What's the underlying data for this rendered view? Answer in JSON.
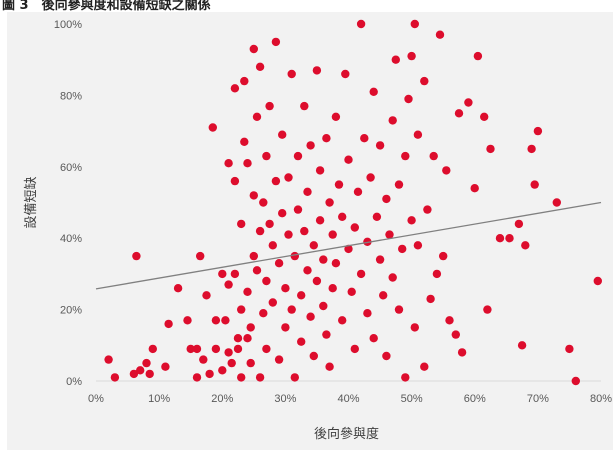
{
  "caption": "圖 3　後向參與度和設備短缺之關係",
  "chart_data": {
    "type": "scatter",
    "xlabel": "後向參與度",
    "ylabel": "設備短缺",
    "xlim": [
      0,
      0.8
    ],
    "ylim": [
      0,
      1
    ],
    "xticks": [
      0,
      0.1,
      0.2,
      0.3,
      0.4,
      0.5,
      0.6,
      0.7,
      0.8
    ],
    "yticks": [
      0,
      0.2,
      0.4,
      0.6,
      0.8,
      1.0
    ],
    "xtick_labels": [
      "0%",
      "10%",
      "20%",
      "30%",
      "40%",
      "50%",
      "60%",
      "70%",
      "80%"
    ],
    "ytick_labels": [
      "0%",
      "20%",
      "40%",
      "60%",
      "80%",
      "100%"
    ],
    "grid": false,
    "legend": "none",
    "marker_color": "#dd0d2d",
    "trendline": {
      "type": "linear",
      "color": "#808080",
      "x": [
        0,
        0.8
      ],
      "y": [
        0.258,
        0.5
      ]
    },
    "points": [
      [
        0.02,
        0.06
      ],
      [
        0.03,
        0.01
      ],
      [
        0.06,
        0.02
      ],
      [
        0.064,
        0.35
      ],
      [
        0.07,
        0.03
      ],
      [
        0.08,
        0.05
      ],
      [
        0.085,
        0.02
      ],
      [
        0.09,
        0.09
      ],
      [
        0.11,
        0.04
      ],
      [
        0.115,
        0.16
      ],
      [
        0.13,
        0.26
      ],
      [
        0.145,
        0.17
      ],
      [
        0.15,
        0.09
      ],
      [
        0.16,
        0.01
      ],
      [
        0.16,
        0.09
      ],
      [
        0.165,
        0.35
      ],
      [
        0.17,
        0.06
      ],
      [
        0.175,
        0.24
      ],
      [
        0.18,
        0.02
      ],
      [
        0.185,
        0.71
      ],
      [
        0.19,
        0.17
      ],
      [
        0.19,
        0.09
      ],
      [
        0.2,
        0.3
      ],
      [
        0.2,
        0.03
      ],
      [
        0.205,
        0.17
      ],
      [
        0.21,
        0.27
      ],
      [
        0.21,
        0.61
      ],
      [
        0.21,
        0.08
      ],
      [
        0.215,
        0.05
      ],
      [
        0.22,
        0.56
      ],
      [
        0.22,
        0.82
      ],
      [
        0.22,
        0.3
      ],
      [
        0.225,
        0.09
      ],
      [
        0.225,
        0.12
      ],
      [
        0.23,
        0.01
      ],
      [
        0.23,
        0.2
      ],
      [
        0.23,
        0.44
      ],
      [
        0.235,
        0.67
      ],
      [
        0.235,
        0.84
      ],
      [
        0.24,
        0.61
      ],
      [
        0.24,
        0.12
      ],
      [
        0.24,
        0.25
      ],
      [
        0.245,
        0.05
      ],
      [
        0.245,
        0.15
      ],
      [
        0.25,
        0.35
      ],
      [
        0.25,
        0.52
      ],
      [
        0.25,
        0.93
      ],
      [
        0.255,
        0.31
      ],
      [
        0.255,
        0.74
      ],
      [
        0.26,
        0.42
      ],
      [
        0.26,
        0.88
      ],
      [
        0.26,
        0.01
      ],
      [
        0.265,
        0.5
      ],
      [
        0.265,
        0.19
      ],
      [
        0.27,
        0.63
      ],
      [
        0.27,
        0.28
      ],
      [
        0.27,
        0.09
      ],
      [
        0.275,
        0.44
      ],
      [
        0.275,
        0.77
      ],
      [
        0.28,
        0.22
      ],
      [
        0.28,
        0.38
      ],
      [
        0.285,
        0.56
      ],
      [
        0.285,
        0.95
      ],
      [
        0.29,
        0.06
      ],
      [
        0.29,
        0.33
      ],
      [
        0.295,
        0.47
      ],
      [
        0.295,
        0.69
      ],
      [
        0.3,
        0.15
      ],
      [
        0.3,
        0.26
      ],
      [
        0.305,
        0.41
      ],
      [
        0.305,
        0.57
      ],
      [
        0.31,
        0.86
      ],
      [
        0.31,
        0.2
      ],
      [
        0.315,
        0.01
      ],
      [
        0.315,
        0.35
      ],
      [
        0.32,
        0.48
      ],
      [
        0.32,
        0.63
      ],
      [
        0.325,
        0.24
      ],
      [
        0.325,
        0.11
      ],
      [
        0.33,
        0.77
      ],
      [
        0.33,
        0.42
      ],
      [
        0.335,
        0.31
      ],
      [
        0.335,
        0.53
      ],
      [
        0.34,
        0.18
      ],
      [
        0.34,
        0.66
      ],
      [
        0.345,
        0.38
      ],
      [
        0.345,
        0.07
      ],
      [
        0.35,
        0.87
      ],
      [
        0.35,
        0.28
      ],
      [
        0.355,
        0.45
      ],
      [
        0.355,
        0.59
      ],
      [
        0.36,
        0.21
      ],
      [
        0.36,
        0.34
      ],
      [
        0.365,
        0.68
      ],
      [
        0.365,
        0.13
      ],
      [
        0.37,
        0.5
      ],
      [
        0.37,
        0.04
      ],
      [
        0.375,
        0.41
      ],
      [
        0.375,
        0.26
      ],
      [
        0.38,
        0.74
      ],
      [
        0.38,
        0.33
      ],
      [
        0.385,
        0.55
      ],
      [
        0.39,
        0.17
      ],
      [
        0.39,
        0.46
      ],
      [
        0.395,
        0.86
      ],
      [
        0.4,
        0.37
      ],
      [
        0.4,
        0.62
      ],
      [
        0.405,
        0.25
      ],
      [
        0.41,
        0.09
      ],
      [
        0.41,
        0.43
      ],
      [
        0.415,
        0.53
      ],
      [
        0.42,
        1.0
      ],
      [
        0.42,
        0.3
      ],
      [
        0.425,
        0.68
      ],
      [
        0.43,
        0.19
      ],
      [
        0.43,
        0.39
      ],
      [
        0.435,
        0.57
      ],
      [
        0.44,
        0.81
      ],
      [
        0.44,
        0.12
      ],
      [
        0.445,
        0.46
      ],
      [
        0.45,
        0.34
      ],
      [
        0.45,
        0.66
      ],
      [
        0.455,
        0.24
      ],
      [
        0.46,
        0.51
      ],
      [
        0.46,
        0.07
      ],
      [
        0.465,
        0.41
      ],
      [
        0.47,
        0.73
      ],
      [
        0.47,
        0.29
      ],
      [
        0.475,
        0.9
      ],
      [
        0.48,
        0.55
      ],
      [
        0.48,
        0.2
      ],
      [
        0.485,
        0.37
      ],
      [
        0.49,
        0.01
      ],
      [
        0.49,
        0.63
      ],
      [
        0.495,
        0.79
      ],
      [
        0.5,
        0.45
      ],
      [
        0.5,
        0.91
      ],
      [
        0.505,
        1.0
      ],
      [
        0.505,
        0.15
      ],
      [
        0.51,
        0.69
      ],
      [
        0.51,
        0.38
      ],
      [
        0.52,
        0.84
      ],
      [
        0.52,
        0.04
      ],
      [
        0.525,
        0.48
      ],
      [
        0.53,
        0.23
      ],
      [
        0.535,
        0.63
      ],
      [
        0.54,
        0.3
      ],
      [
        0.545,
        0.97
      ],
      [
        0.55,
        0.35
      ],
      [
        0.555,
        0.59
      ],
      [
        0.56,
        0.17
      ],
      [
        0.57,
        0.13
      ],
      [
        0.575,
        0.75
      ],
      [
        0.58,
        0.08
      ],
      [
        0.59,
        0.78
      ],
      [
        0.6,
        0.54
      ],
      [
        0.605,
        0.91
      ],
      [
        0.615,
        0.74
      ],
      [
        0.62,
        0.2
      ],
      [
        0.625,
        0.65
      ],
      [
        0.64,
        0.4
      ],
      [
        0.655,
        0.4
      ],
      [
        0.67,
        0.44
      ],
      [
        0.675,
        0.1
      ],
      [
        0.68,
        0.38
      ],
      [
        0.69,
        0.65
      ],
      [
        0.695,
        0.55
      ],
      [
        0.7,
        0.7
      ],
      [
        0.73,
        0.5
      ],
      [
        0.75,
        0.09
      ],
      [
        0.76,
        0.0
      ],
      [
        0.795,
        0.28
      ]
    ]
  }
}
